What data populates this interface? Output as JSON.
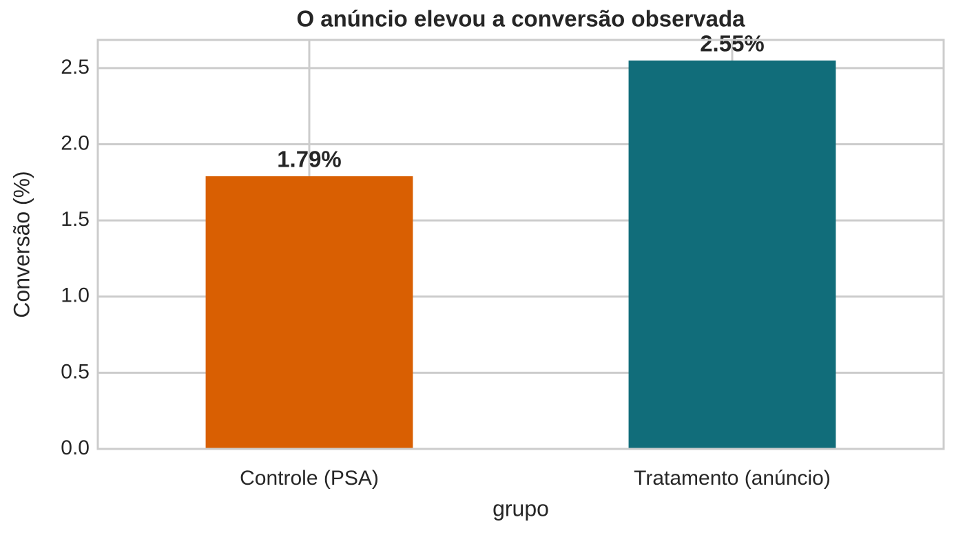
{
  "chart_data": {
    "type": "bar",
    "title": "O anúncio elevou a conversão observada",
    "x_label": "grupo",
    "y_label": "Conversão (%)",
    "categories": [
      "Controle (PSA)",
      "Tratamento (anúncio)"
    ],
    "values": [
      1.79,
      2.55
    ],
    "value_labels": [
      "1.79%",
      "2.55%"
    ],
    "colors": [
      "#d95f02",
      "#116d7a"
    ],
    "ylim": [
      0,
      2.685
    ],
    "yticks": [
      {
        "value": 0,
        "label": "0.0"
      },
      0.5,
      {
        "value": 1,
        "label": "1.0"
      },
      1.5,
      {
        "value": 2,
        "label": "2.0"
      },
      2.5
    ],
    "grid": true
  }
}
